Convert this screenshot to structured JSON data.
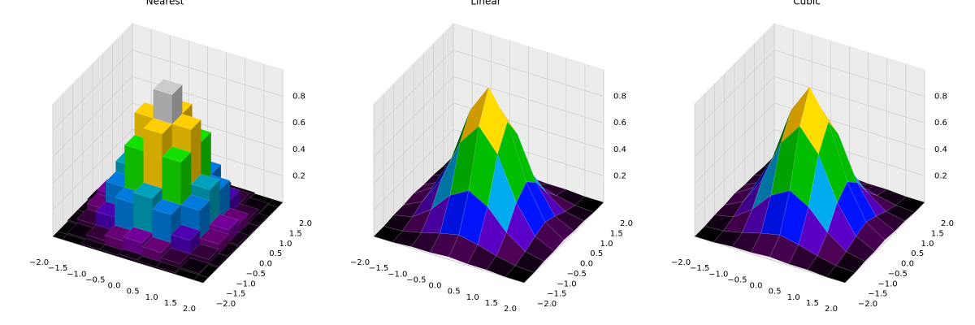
{
  "chart_data": [
    {
      "type": "surface",
      "title": "Nearest",
      "interpolation": "nearest",
      "colormap": "nipy_spectral",
      "x": [
        -2,
        -1.5,
        -1,
        -0.5,
        0,
        0.5,
        1,
        1.5,
        2
      ],
      "y": [
        -2,
        -1.5,
        -1,
        -0.5,
        0,
        0.5,
        1,
        1.5,
        2
      ],
      "z": [
        [
          0,
          0,
          0.01,
          0.01,
          0.02,
          0.01,
          0.01,
          0,
          0
        ],
        [
          0,
          0.01,
          0.04,
          0.08,
          0.11,
          0.08,
          0.04,
          0.01,
          0
        ],
        [
          0.01,
          0.04,
          0.14,
          0.29,
          0.37,
          0.29,
          0.14,
          0.04,
          0.01
        ],
        [
          0.01,
          0.08,
          0.29,
          0.61,
          0.78,
          0.61,
          0.29,
          0.08,
          0.01
        ],
        [
          0.02,
          0.11,
          0.37,
          0.78,
          1,
          0.78,
          0.37,
          0.11,
          0.02
        ],
        [
          0.01,
          0.08,
          0.29,
          0.61,
          0.78,
          0.61,
          0.29,
          0.08,
          0.01
        ],
        [
          0.01,
          0.04,
          0.14,
          0.29,
          0.37,
          0.29,
          0.14,
          0.04,
          0.01
        ],
        [
          0,
          0.01,
          0.04,
          0.08,
          0.11,
          0.08,
          0.04,
          0.01,
          0
        ],
        [
          0,
          0,
          0.01,
          0.01,
          0.02,
          0.01,
          0.01,
          0,
          0
        ]
      ],
      "xlim": [
        -2,
        2
      ],
      "ylim": [
        -2,
        2
      ],
      "zlim": [
        0,
        1
      ],
      "xticks": [
        {
          "value": -2,
          "label": "−2.0"
        },
        {
          "value": -1.5,
          "label": "−1.5"
        },
        {
          "value": -1,
          "label": "−1.0"
        },
        {
          "value": -0.5,
          "label": "−0.5"
        },
        {
          "value": 0,
          "label": "0.0"
        },
        {
          "value": 0.5,
          "label": "0.5"
        },
        {
          "value": 1,
          "label": "1.0"
        },
        {
          "value": 1.5,
          "label": "1.5"
        },
        {
          "value": 2,
          "label": "2.0"
        }
      ],
      "yticks": [
        {
          "value": -2,
          "label": "−2.0"
        },
        {
          "value": -1.5,
          "label": "−1.5"
        },
        {
          "value": -1,
          "label": "−1.0"
        },
        {
          "value": -0.5,
          "label": "−0.5"
        },
        {
          "value": 0,
          "label": "0.0"
        },
        {
          "value": 0.5,
          "label": "0.5"
        },
        {
          "value": 1,
          "label": "1.0"
        },
        {
          "value": 1.5,
          "label": "1.5"
        },
        {
          "value": 2,
          "label": "2.0"
        }
      ],
      "zticks": [
        0.2,
        0.4,
        0.6,
        0.8
      ]
    },
    {
      "type": "surface",
      "title": "Linear",
      "interpolation": "linear",
      "colormap": "nipy_spectral",
      "x": [
        -2,
        -1.5,
        -1,
        -0.5,
        0,
        0.5,
        1,
        1.5,
        2
      ],
      "y": [
        -2,
        -1.5,
        -1,
        -0.5,
        0,
        0.5,
        1,
        1.5,
        2
      ],
      "z": [
        [
          0,
          0,
          0.01,
          0.01,
          0.02,
          0.01,
          0.01,
          0,
          0
        ],
        [
          0,
          0.01,
          0.04,
          0.08,
          0.11,
          0.08,
          0.04,
          0.01,
          0
        ],
        [
          0.01,
          0.04,
          0.14,
          0.29,
          0.37,
          0.29,
          0.14,
          0.04,
          0.01
        ],
        [
          0.01,
          0.08,
          0.29,
          0.61,
          0.78,
          0.61,
          0.29,
          0.08,
          0.01
        ],
        [
          0.02,
          0.11,
          0.37,
          0.78,
          1,
          0.78,
          0.37,
          0.11,
          0.02
        ],
        [
          0.01,
          0.08,
          0.29,
          0.61,
          0.78,
          0.61,
          0.29,
          0.08,
          0.01
        ],
        [
          0.01,
          0.04,
          0.14,
          0.29,
          0.37,
          0.29,
          0.14,
          0.04,
          0.01
        ],
        [
          0,
          0.01,
          0.04,
          0.08,
          0.11,
          0.08,
          0.04,
          0.01,
          0
        ],
        [
          0,
          0,
          0.01,
          0.01,
          0.02,
          0.01,
          0.01,
          0,
          0
        ]
      ],
      "xlim": [
        -2,
        2
      ],
      "ylim": [
        -2,
        2
      ],
      "zlim": [
        0,
        1
      ],
      "xticks": [
        {
          "value": -2,
          "label": "−2.0"
        },
        {
          "value": -1.5,
          "label": "−1.5"
        },
        {
          "value": -1,
          "label": "−1.0"
        },
        {
          "value": -0.5,
          "label": "−0.5"
        },
        {
          "value": 0,
          "label": "0.0"
        },
        {
          "value": 0.5,
          "label": "0.5"
        },
        {
          "value": 1,
          "label": "1.0"
        },
        {
          "value": 1.5,
          "label": "1.5"
        },
        {
          "value": 2,
          "label": "2.0"
        }
      ],
      "yticks": [
        {
          "value": -2,
          "label": "−2.0"
        },
        {
          "value": -1.5,
          "label": "−1.5"
        },
        {
          "value": -1,
          "label": "−1.0"
        },
        {
          "value": -0.5,
          "label": "−0.5"
        },
        {
          "value": 0,
          "label": "0.0"
        },
        {
          "value": 0.5,
          "label": "0.5"
        },
        {
          "value": 1,
          "label": "1.0"
        },
        {
          "value": 1.5,
          "label": "1.5"
        },
        {
          "value": 2,
          "label": "2.0"
        }
      ],
      "zticks": [
        0.2,
        0.4,
        0.6,
        0.8
      ]
    },
    {
      "type": "surface",
      "title": "Cubic",
      "interpolation": "cubic",
      "colormap": "nipy_spectral",
      "x": [
        -2,
        -1.5,
        -1,
        -0.5,
        0,
        0.5,
        1,
        1.5,
        2
      ],
      "y": [
        -2,
        -1.5,
        -1,
        -0.5,
        0,
        0.5,
        1,
        1.5,
        2
      ],
      "z": [
        [
          0,
          0,
          0.01,
          0.01,
          0.02,
          0.01,
          0.01,
          0,
          0
        ],
        [
          0,
          0.01,
          0.04,
          0.08,
          0.11,
          0.08,
          0.04,
          0.01,
          0
        ],
        [
          0.01,
          0.04,
          0.14,
          0.29,
          0.37,
          0.29,
          0.14,
          0.04,
          0.01
        ],
        [
          0.01,
          0.08,
          0.29,
          0.61,
          0.78,
          0.61,
          0.29,
          0.08,
          0.01
        ],
        [
          0.02,
          0.11,
          0.37,
          0.78,
          1,
          0.78,
          0.37,
          0.11,
          0.02
        ],
        [
          0.01,
          0.08,
          0.29,
          0.61,
          0.78,
          0.61,
          0.29,
          0.08,
          0.01
        ],
        [
          0.01,
          0.04,
          0.14,
          0.29,
          0.37,
          0.29,
          0.14,
          0.04,
          0.01
        ],
        [
          0,
          0.01,
          0.04,
          0.08,
          0.11,
          0.08,
          0.04,
          0.01,
          0
        ],
        [
          0,
          0,
          0.01,
          0.01,
          0.02,
          0.01,
          0.01,
          0,
          0
        ]
      ],
      "xlim": [
        -2,
        2
      ],
      "ylim": [
        -2,
        2
      ],
      "zlim": [
        0,
        1
      ],
      "xticks": [
        {
          "value": -2,
          "label": "−2.0"
        },
        {
          "value": -1.5,
          "label": "−1.5"
        },
        {
          "value": -1,
          "label": "−1.0"
        },
        {
          "value": -0.5,
          "label": "−0.5"
        },
        {
          "value": 0,
          "label": "0.0"
        },
        {
          "value": 0.5,
          "label": "0.5"
        },
        {
          "value": 1,
          "label": "1.0"
        },
        {
          "value": 1.5,
          "label": "1.5"
        },
        {
          "value": 2,
          "label": "2.0"
        }
      ],
      "yticks": [
        {
          "value": -2,
          "label": "−2.0"
        },
        {
          "value": -1.5,
          "label": "−1.5"
        },
        {
          "value": -1,
          "label": "−1.0"
        },
        {
          "value": -0.5,
          "label": "−0.5"
        },
        {
          "value": 0,
          "label": "0.0"
        },
        {
          "value": 0.5,
          "label": "0.5"
        },
        {
          "value": 1,
          "label": "1.0"
        },
        {
          "value": 1.5,
          "label": "1.5"
        },
        {
          "value": 2,
          "label": "2.0"
        }
      ],
      "zticks": [
        0.2,
        0.4,
        0.6,
        0.8
      ]
    }
  ]
}
